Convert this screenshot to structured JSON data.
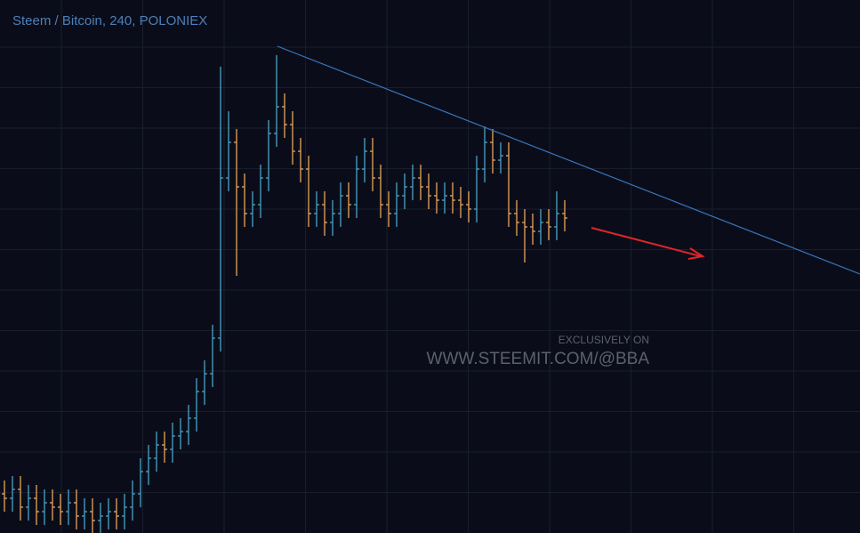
{
  "chart_data": {
    "type": "ohlc",
    "title": "Steem / Bitcoin, 240, POLONIEX",
    "annotations": [
      "EXCLUSIVELY ON",
      "WWW.STEEMIT.COM/@BBA"
    ],
    "ylim": [
      0,
      600
    ],
    "up_color": "#4aa3c9",
    "down_color": "#e9a45c",
    "open": [
      45,
      40,
      50,
      30,
      40,
      25,
      35,
      30,
      25,
      35,
      20,
      25,
      15,
      20,
      25,
      20,
      30,
      45,
      70,
      85,
      100,
      95,
      110,
      115,
      130,
      160,
      180,
      220,
      400,
      440,
      390,
      360,
      370,
      400,
      450,
      480,
      460,
      430,
      410,
      360,
      370,
      350,
      360,
      380,
      370,
      410,
      430,
      400,
      370,
      360,
      380,
      390,
      400,
      390,
      380,
      375,
      380,
      375,
      370,
      365,
      410,
      440,
      420,
      425,
      360,
      350,
      345,
      340,
      350,
      345,
      360
    ],
    "high": [
      60,
      65,
      65,
      55,
      55,
      50,
      50,
      45,
      50,
      50,
      40,
      40,
      35,
      40,
      40,
      45,
      60,
      85,
      100,
      115,
      115,
      125,
      130,
      145,
      175,
      195,
      235,
      525,
      475,
      455,
      405,
      385,
      415,
      465,
      538,
      495,
      475,
      445,
      425,
      385,
      385,
      375,
      395,
      395,
      425,
      445,
      445,
      415,
      385,
      395,
      405,
      415,
      415,
      405,
      395,
      395,
      395,
      390,
      385,
      425,
      458,
      455,
      440,
      440,
      375,
      365,
      360,
      365,
      365,
      385,
      375
    ],
    "low": [
      25,
      25,
      15,
      15,
      10,
      10,
      15,
      10,
      10,
      5,
      5,
      0,
      0,
      5,
      5,
      5,
      15,
      30,
      55,
      70,
      80,
      80,
      95,
      100,
      115,
      145,
      165,
      205,
      385,
      290,
      345,
      345,
      355,
      385,
      435,
      445,
      415,
      395,
      345,
      345,
      335,
      335,
      345,
      355,
      355,
      395,
      385,
      355,
      345,
      345,
      365,
      375,
      375,
      365,
      360,
      360,
      360,
      355,
      350,
      350,
      395,
      405,
      405,
      345,
      335,
      305,
      325,
      325,
      330,
      330,
      340
    ],
    "close": [
      40,
      50,
      30,
      40,
      25,
      35,
      30,
      25,
      35,
      20,
      25,
      15,
      20,
      25,
      20,
      30,
      45,
      70,
      85,
      100,
      95,
      110,
      115,
      130,
      160,
      180,
      220,
      400,
      440,
      390,
      360,
      370,
      400,
      450,
      480,
      460,
      430,
      410,
      360,
      370,
      350,
      360,
      380,
      370,
      410,
      430,
      400,
      370,
      360,
      380,
      390,
      400,
      390,
      380,
      375,
      380,
      375,
      370,
      365,
      410,
      440,
      420,
      425,
      360,
      350,
      345,
      340,
      350,
      345,
      360,
      355
    ]
  }
}
